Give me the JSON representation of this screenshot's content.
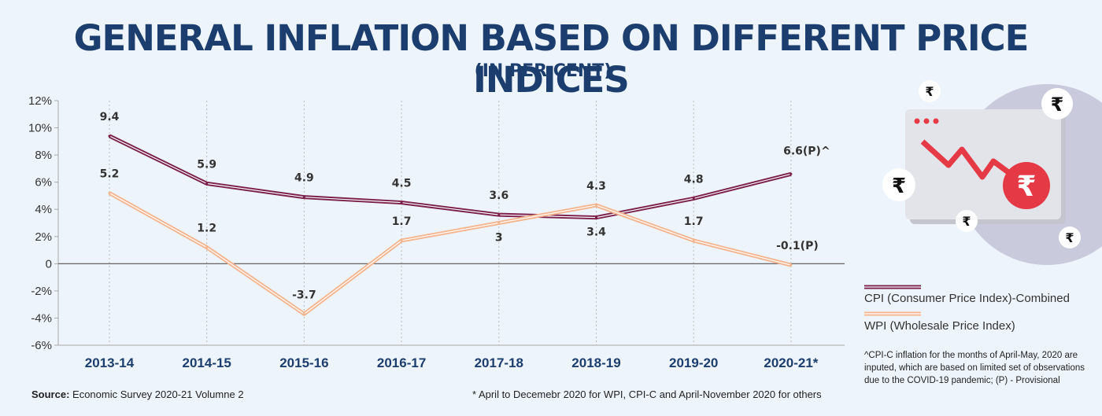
{
  "title": "GENERAL INFLATION BASED ON DIFFERENT PRICE INDICES",
  "subtitle": "(IN PER CENT)",
  "source_label": "Source:",
  "source_text": "Economic Survey 2020-21 Volumne 2",
  "footnote": "* April to Decemebr 2020 for WPI, CPI-C and April-November 2020 for others",
  "side_note": "^CPI-C inflation for the months of April-May, 2020 are inputed, which are based on limited set of observations due to the COVID-19  pandemic;  (P) - Provisional",
  "icon": {
    "name": "inflation-chart-icon",
    "symbol": "₹"
  },
  "colors": {
    "cpi": "#7b1f4c",
    "wpi": "#f4b58f",
    "title": "#1b3e6e",
    "accent_red": "#e63946"
  },
  "chart_data": {
    "type": "line",
    "categories": [
      "2013-14",
      "2014-15",
      "2015-16",
      "2016-17",
      "2017-18",
      "2018-19",
      "2019-20",
      "2020-21*"
    ],
    "ylim": [
      -6,
      12
    ],
    "yticks": [
      -6,
      -4,
      -2,
      0,
      2,
      4,
      6,
      8,
      10,
      12
    ],
    "ytick_labels": [
      "-6%",
      "-4%",
      "-2%",
      "0",
      "2%",
      "4%",
      "6%",
      "8%",
      "10%",
      "12%"
    ],
    "grid": "vertical dotted",
    "legend_position": "right",
    "series": [
      {
        "name": "CPI (Consumer Price Index)-Combined",
        "values": [
          9.4,
          5.9,
          4.9,
          4.5,
          3.6,
          3.4,
          4.8,
          6.6
        ],
        "labels": [
          "9.4",
          "5.9",
          "4.9",
          "4.5",
          "3.6",
          "3.4",
          "4.8",
          "6.6(P)^"
        ]
      },
      {
        "name": "WPI (Wholesale Price Index)",
        "values": [
          5.2,
          1.2,
          -3.7,
          1.7,
          3,
          4.3,
          1.7,
          -0.1
        ],
        "labels": [
          "5.2",
          "1.2",
          "-3.7",
          "1.7",
          "3",
          "4.3",
          "1.7",
          "-0.1(P)"
        ]
      }
    ]
  }
}
